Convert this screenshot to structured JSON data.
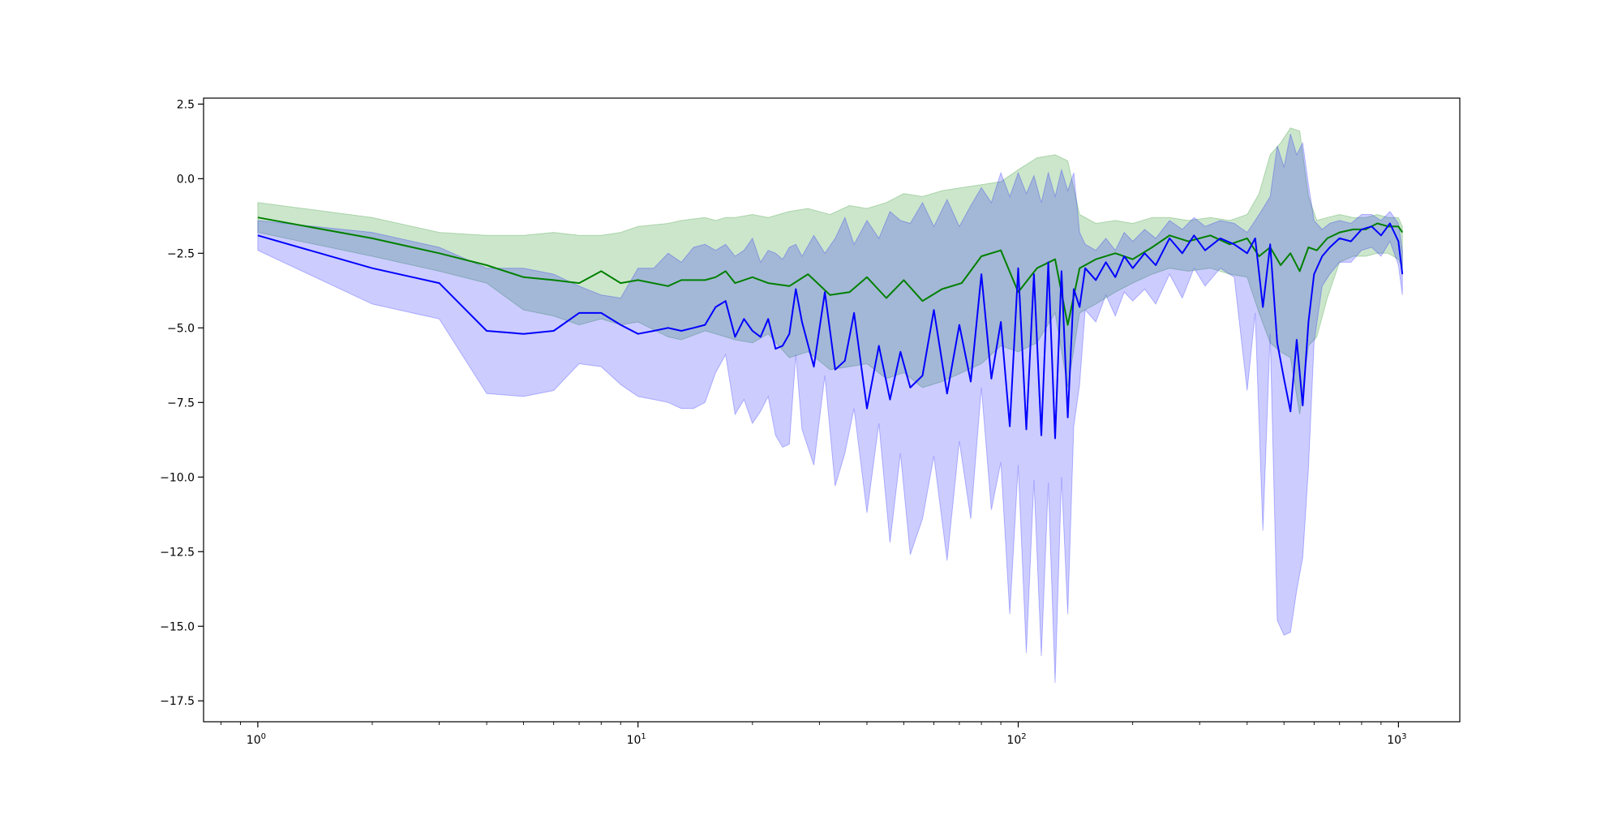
{
  "chart_data": {
    "type": "line",
    "x_scale": "log",
    "xlim": [
      0.72,
      1450
    ],
    "ylim": [
      -18.2,
      2.7
    ],
    "grid": false,
    "legend": "none",
    "x_ticks": [
      {
        "value": 1,
        "base": "10",
        "exp": "0"
      },
      {
        "value": 10,
        "base": "10",
        "exp": "1"
      },
      {
        "value": 100,
        "base": "10",
        "exp": "2"
      },
      {
        "value": 1000,
        "base": "10",
        "exp": "3"
      }
    ],
    "y_ticks": [
      {
        "value": 2.5,
        "label": "2.5"
      },
      {
        "value": 0.0,
        "label": "0.0"
      },
      {
        "value": -2.5,
        "label": "−2.5"
      },
      {
        "value": -5.0,
        "label": "−5.0"
      },
      {
        "value": -7.5,
        "label": "−7.5"
      },
      {
        "value": -10.0,
        "label": "−10.0"
      },
      {
        "value": -12.5,
        "label": "−12.5"
      },
      {
        "value": -15.0,
        "label": "−15.0"
      },
      {
        "value": -17.5,
        "label": "−17.5"
      }
    ],
    "series": [
      {
        "color": "#008000",
        "band_color": "#008000",
        "band_opacity": 0.2,
        "x": [
          1,
          2,
          3,
          4,
          5,
          6,
          7,
          8,
          9,
          10,
          12,
          13,
          15,
          16,
          17,
          18,
          20,
          22,
          25,
          28,
          32,
          36,
          40,
          45,
          50,
          56,
          63,
          71,
          80,
          90,
          100,
          112,
          125,
          135,
          145,
          160,
          180,
          200,
          225,
          250,
          280,
          320,
          360,
          400,
          430,
          460,
          490,
          520,
          550,
          580,
          610,
          650,
          700,
          760,
          820,
          880,
          940,
          1000,
          1024
        ],
        "y": [
          -1.3,
          -2.0,
          -2.5,
          -2.9,
          -3.3,
          -3.4,
          -3.5,
          -3.1,
          -3.5,
          -3.4,
          -3.6,
          -3.4,
          -3.4,
          -3.3,
          -3.1,
          -3.5,
          -3.3,
          -3.5,
          -3.6,
          -3.2,
          -3.9,
          -3.8,
          -3.3,
          -4.0,
          -3.4,
          -4.1,
          -3.7,
          -3.5,
          -2.6,
          -2.4,
          -3.8,
          -3.0,
          -2.7,
          -4.9,
          -3.0,
          -2.7,
          -2.5,
          -2.7,
          -2.3,
          -1.9,
          -2.1,
          -1.9,
          -2.2,
          -2.0,
          -2.6,
          -2.3,
          -2.9,
          -2.5,
          -3.1,
          -2.3,
          -2.4,
          -2.0,
          -1.8,
          -1.7,
          -1.7,
          -1.5,
          -1.6,
          -1.6,
          -1.8
        ],
        "upper": [
          -0.8,
          -1.3,
          -1.8,
          -1.9,
          -1.9,
          -1.8,
          -1.9,
          -1.9,
          -1.8,
          -1.6,
          -1.5,
          -1.4,
          -1.3,
          -1.4,
          -1.3,
          -1.3,
          -1.2,
          -1.3,
          -1.1,
          -1.0,
          -1.2,
          -0.9,
          -1.0,
          -0.8,
          -0.5,
          -0.6,
          -0.4,
          -0.3,
          -0.2,
          -0.1,
          0.3,
          0.7,
          0.8,
          0.6,
          -1.2,
          -1.5,
          -1.4,
          -1.5,
          -1.3,
          -1.3,
          -1.4,
          -1.3,
          -1.4,
          -1.2,
          -0.5,
          0.8,
          1.2,
          1.7,
          1.6,
          -0.6,
          -1.4,
          -1.3,
          -1.2,
          -1.3,
          -1.3,
          -1.2,
          -1.3,
          -1.3,
          -1.6
        ],
        "lower": [
          -1.8,
          -2.6,
          -3.1,
          -3.5,
          -4.4,
          -4.6,
          -4.9,
          -4.7,
          -4.9,
          -4.8,
          -5.3,
          -5.4,
          -5.1,
          -5.2,
          -5.3,
          -5.4,
          -5.5,
          -5.2,
          -6.0,
          -5.8,
          -6.4,
          -6.3,
          -6.2,
          -6.7,
          -6.5,
          -7.0,
          -6.8,
          -6.5,
          -6.2,
          -5.6,
          -5.8,
          -5.5,
          -4.5,
          -7.0,
          -4.5,
          -4.2,
          -3.8,
          -3.5,
          -3.2,
          -3.0,
          -3.1,
          -3.0,
          -3.2,
          -3.3,
          -4.5,
          -5.5,
          -5.8,
          -6.0,
          -7.9,
          -5.6,
          -5.3,
          -4.0,
          -2.8,
          -2.6,
          -2.6,
          -2.5,
          -2.5,
          -2.7,
          -3.0
        ]
      },
      {
        "color": "#0000ff",
        "band_color": "#0000ff",
        "band_opacity": 0.2,
        "x": [
          1,
          2,
          3,
          4,
          5,
          6,
          7,
          8,
          9,
          10,
          11,
          12,
          13,
          14,
          15,
          16,
          17,
          18,
          19,
          20,
          21,
          22,
          23,
          24,
          25,
          26,
          27,
          29,
          31,
          33,
          35,
          37,
          40,
          43,
          46,
          49,
          52,
          56,
          60,
          65,
          70,
          75,
          80,
          85,
          90,
          95,
          100,
          105,
          110,
          115,
          120,
          125,
          130,
          135,
          140,
          145,
          150,
          160,
          170,
          180,
          190,
          200,
          215,
          230,
          250,
          270,
          290,
          310,
          340,
          370,
          400,
          420,
          440,
          460,
          480,
          500,
          520,
          540,
          560,
          580,
          600,
          630,
          660,
          700,
          750,
          800,
          850,
          900,
          950,
          1000,
          1024
        ],
        "y": [
          -1.9,
          -3.0,
          -3.5,
          -5.1,
          -5.2,
          -5.1,
          -4.5,
          -4.5,
          -4.9,
          -5.2,
          -5.1,
          -5.0,
          -5.1,
          -5.0,
          -4.9,
          -4.3,
          -4.1,
          -5.3,
          -4.7,
          -5.1,
          -5.3,
          -4.7,
          -5.7,
          -5.6,
          -5.2,
          -3.7,
          -4.8,
          -6.3,
          -3.8,
          -6.4,
          -6.1,
          -4.5,
          -7.7,
          -5.6,
          -7.4,
          -5.8,
          -7.0,
          -6.6,
          -4.4,
          -7.2,
          -4.9,
          -6.8,
          -3.2,
          -6.7,
          -4.8,
          -8.3,
          -3.0,
          -8.4,
          -3.2,
          -8.6,
          -2.8,
          -8.7,
          -3.1,
          -8.0,
          -3.7,
          -4.3,
          -3.0,
          -3.4,
          -2.8,
          -3.3,
          -2.6,
          -3.0,
          -2.5,
          -2.9,
          -2.0,
          -2.5,
          -1.9,
          -2.4,
          -2.0,
          -2.2,
          -2.5,
          -2.0,
          -4.3,
          -2.2,
          -5.5,
          -6.7,
          -7.8,
          -5.4,
          -7.6,
          -4.8,
          -3.2,
          -2.6,
          -2.3,
          -2.0,
          -2.1,
          -1.7,
          -1.6,
          -1.9,
          -1.5,
          -2.1,
          -3.2
        ],
        "upper": [
          -1.4,
          -1.8,
          -2.3,
          -3.0,
          -3.0,
          -3.2,
          -3.6,
          -3.9,
          -4.0,
          -3.0,
          -3.0,
          -2.5,
          -2.8,
          -2.3,
          -2.2,
          -2.4,
          -2.2,
          -2.6,
          -2.4,
          -2.0,
          -2.8,
          -2.4,
          -2.5,
          -2.7,
          -2.3,
          -2.2,
          -2.6,
          -1.9,
          -2.5,
          -2.0,
          -1.3,
          -2.2,
          -1.4,
          -2.0,
          -1.1,
          -1.4,
          -1.5,
          -0.8,
          -1.6,
          -0.7,
          -1.6,
          -0.9,
          -0.3,
          -0.8,
          0.2,
          -0.6,
          0.2,
          -0.5,
          0.1,
          -0.8,
          0.2,
          -0.6,
          0.3,
          -0.4,
          0.2,
          -1.8,
          -2.2,
          -2.4,
          -2.0,
          -2.4,
          -1.8,
          -2.1,
          -1.7,
          -2.0,
          -1.4,
          -1.7,
          -1.3,
          -1.6,
          -1.4,
          -1.5,
          -1.8,
          -1.4,
          -1.0,
          -0.6,
          1.1,
          0.4,
          1.5,
          0.8,
          1.2,
          -0.2,
          -1.4,
          -1.7,
          -1.5,
          -1.4,
          -1.5,
          -1.2,
          -1.2,
          -1.4,
          -1.1,
          -1.5,
          -2.4
        ],
        "lower": [
          -2.4,
          -4.2,
          -4.7,
          -7.2,
          -7.3,
          -7.1,
          -6.2,
          -6.3,
          -6.9,
          -7.3,
          -7.4,
          -7.5,
          -7.7,
          -7.7,
          -7.5,
          -6.5,
          -5.9,
          -7.9,
          -7.4,
          -8.2,
          -7.8,
          -7.3,
          -8.6,
          -9.0,
          -8.9,
          -5.9,
          -8.4,
          -9.6,
          -6.6,
          -10.3,
          -9.2,
          -7.7,
          -11.2,
          -8.2,
          -12.2,
          -9.2,
          -12.6,
          -11.4,
          -9.3,
          -12.8,
          -8.8,
          -11.4,
          -7.0,
          -11.1,
          -9.5,
          -14.6,
          -9.6,
          -15.9,
          -10.1,
          -16.0,
          -10.2,
          -16.9,
          -10.0,
          -14.6,
          -8.3,
          -6.9,
          -4.4,
          -4.8,
          -3.9,
          -4.6,
          -3.8,
          -4.1,
          -3.7,
          -4.2,
          -3.2,
          -4.0,
          -3.0,
          -3.6,
          -3.0,
          -3.3,
          -7.1,
          -4.5,
          -11.8,
          -5.2,
          -14.8,
          -15.3,
          -15.2,
          -13.8,
          -12.7,
          -9.7,
          -5.5,
          -3.6,
          -3.2,
          -2.8,
          -2.8,
          -2.4,
          -2.3,
          -2.6,
          -2.1,
          -2.9,
          -3.9
        ]
      }
    ]
  }
}
